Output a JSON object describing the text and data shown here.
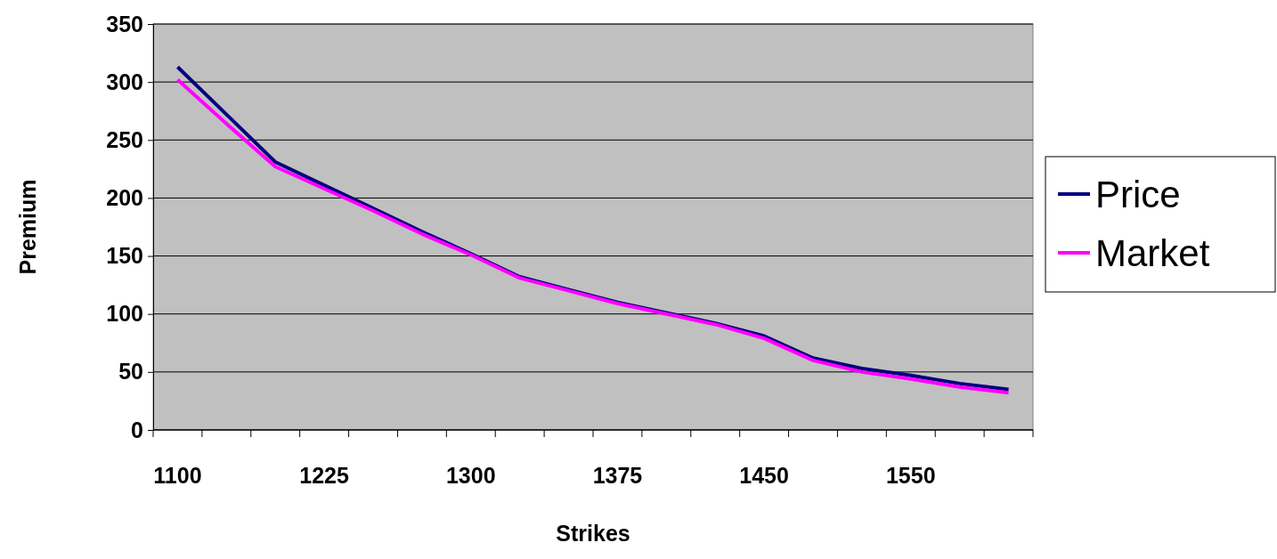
{
  "chart_data": {
    "type": "line",
    "xlabel": "Strikes",
    "ylabel": "Premium",
    "categories": [
      "1100",
      null,
      null,
      "1225",
      null,
      null,
      "1300",
      null,
      null,
      "1375",
      null,
      null,
      "1450",
      null,
      null,
      "1550",
      null,
      null
    ],
    "series": [
      {
        "name": "Price",
        "color": "#000080",
        "values": [
          313,
          272,
          231,
          211,
          191,
          171,
          152,
          132,
          121,
          110,
          101,
          92,
          81,
          62,
          53,
          47,
          40,
          35
        ]
      },
      {
        "name": "Market",
        "color": "#ff00ff",
        "values": [
          302,
          264,
          227,
          208,
          189,
          169,
          151,
          131,
          120,
          109,
          100,
          91,
          79,
          60,
          50,
          44,
          37,
          32
        ]
      }
    ],
    "ylim": [
      0,
      350
    ],
    "yticks": [
      0,
      50,
      100,
      150,
      200,
      250,
      300,
      350
    ],
    "grid": "y",
    "legend": "right",
    "marker": "none",
    "line_style": "solid"
  }
}
